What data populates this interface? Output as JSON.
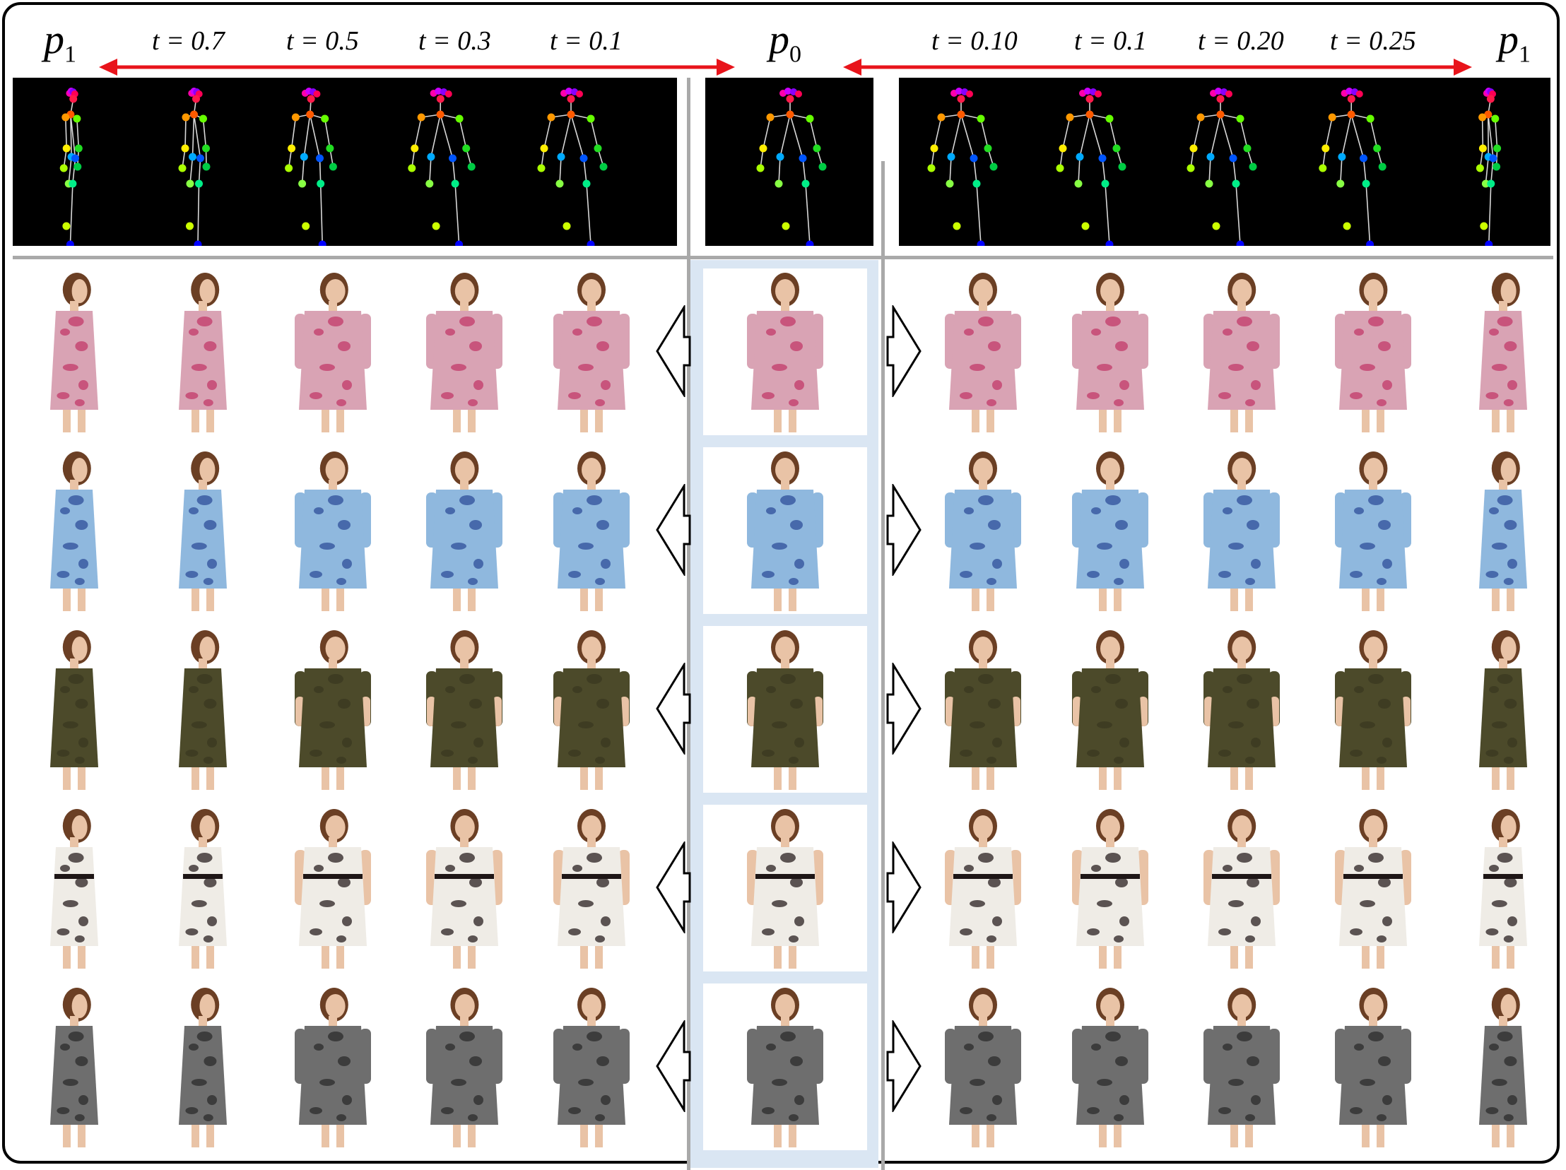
{
  "left_endpoint_label": "p",
  "left_endpoint_sub": "1",
  "center_label": "p",
  "center_sub": "0",
  "right_endpoint_label": "p",
  "right_endpoint_sub": "1",
  "left_t_labels": [
    "t = 0.7",
    "t = 0.5",
    "t = 0.3",
    "t = 0.1"
  ],
  "right_t_labels": [
    "t = 0.10",
    "t = 0.1",
    "t = 0.20",
    "t = 0.25"
  ],
  "colors": {
    "arrow_red": "#e8141b",
    "panel_bg": "#000000",
    "separator": "#a9a9a9",
    "source_bg": "#dae6f3"
  },
  "rows": [
    {
      "name": "floral-pink-dress",
      "dress": "#d9a3b4",
      "pattern": "#c23a6a",
      "sleeve": "long"
    },
    {
      "name": "blue-floral-dress",
      "dress": "#8fb8de",
      "pattern": "#2f4f9a",
      "sleeve": "long"
    },
    {
      "name": "olive-dress",
      "dress": "#4c4a2a",
      "pattern": "#3a3820",
      "sleeve": "short"
    },
    {
      "name": "white-lace-dress",
      "dress": "#efece6",
      "pattern": "#2a2020",
      "sleeve": "none"
    },
    {
      "name": "grey-print-dress",
      "dress": "#6e6e6e",
      "pattern": "#2c2c2c",
      "sleeve": "long"
    }
  ]
}
